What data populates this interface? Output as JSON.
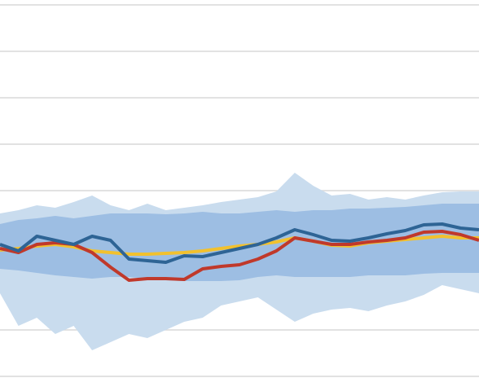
{
  "chart_data": {
    "type": "line",
    "categories": [
      null,
      null,
      null,
      null,
      null,
      null,
      null,
      null,
      null,
      null,
      null,
      null,
      null,
      null,
      null,
      null,
      null,
      null,
      null,
      null,
      null,
      null,
      null,
      null,
      null,
      null,
      null
    ],
    "ylim": [
      0,
      456
    ],
    "yticks": [
      0,
      57,
      114,
      171,
      228,
      285,
      342,
      399,
      456
    ],
    "grid": true,
    "bands": [
      {
        "color": "#c9dcee",
        "upper": [
          200,
          204,
          210,
          207,
          214,
          222,
          210,
          204,
          212,
          204,
          207,
          210,
          214,
          217,
          220,
          227,
          250,
          234,
          222,
          224,
          217,
          220,
          217,
          222,
          226,
          227,
          227
        ],
        "lower": [
          102,
          62,
          72,
          52,
          62,
          32,
          42,
          52,
          47,
          57,
          67,
          72,
          87,
          92,
          97,
          82,
          67,
          77,
          82,
          84,
          80,
          87,
          92,
          100,
          112,
          107,
          102
        ]
      },
      {
        "color": "#9dbee3",
        "upper": [
          187,
          192,
          194,
          197,
          194,
          197,
          200,
          200,
          200,
          199,
          200,
          202,
          200,
          200,
          202,
          204,
          202,
          204,
          204,
          206,
          206,
          207,
          208,
          210,
          212,
          212,
          212
        ],
        "lower": [
          132,
          130,
          127,
          124,
          122,
          120,
          122,
          122,
          120,
          118,
          117,
          117,
          117,
          118,
          122,
          124,
          122,
          122,
          122,
          122,
          124,
          124,
          124,
          126,
          127,
          127,
          127
        ]
      }
    ],
    "series": [
      {
        "color": "#f2c12e",
        "values": [
          155,
          157,
          160,
          162,
          159,
          154,
          152,
          150,
          150,
          151,
          152,
          154,
          157,
          160,
          162,
          165,
          170,
          166,
          161,
          160,
          164,
          166,
          168,
          170,
          172,
          170,
          170
        ]
      },
      {
        "color": "#c0392b",
        "values": [
          157,
          152,
          162,
          164,
          162,
          152,
          134,
          118,
          120,
          120,
          119,
          132,
          135,
          137,
          144,
          154,
          170,
          166,
          162,
          162,
          165,
          167,
          170,
          177,
          178,
          174,
          167
        ]
      },
      {
        "color": "#2e6495",
        "values": [
          162,
          154,
          172,
          167,
          162,
          172,
          167,
          144,
          142,
          140,
          148,
          147,
          152,
          157,
          162,
          170,
          180,
          174,
          167,
          166,
          170,
          175,
          179,
          186,
          187,
          182,
          180
        ]
      }
    ]
  }
}
